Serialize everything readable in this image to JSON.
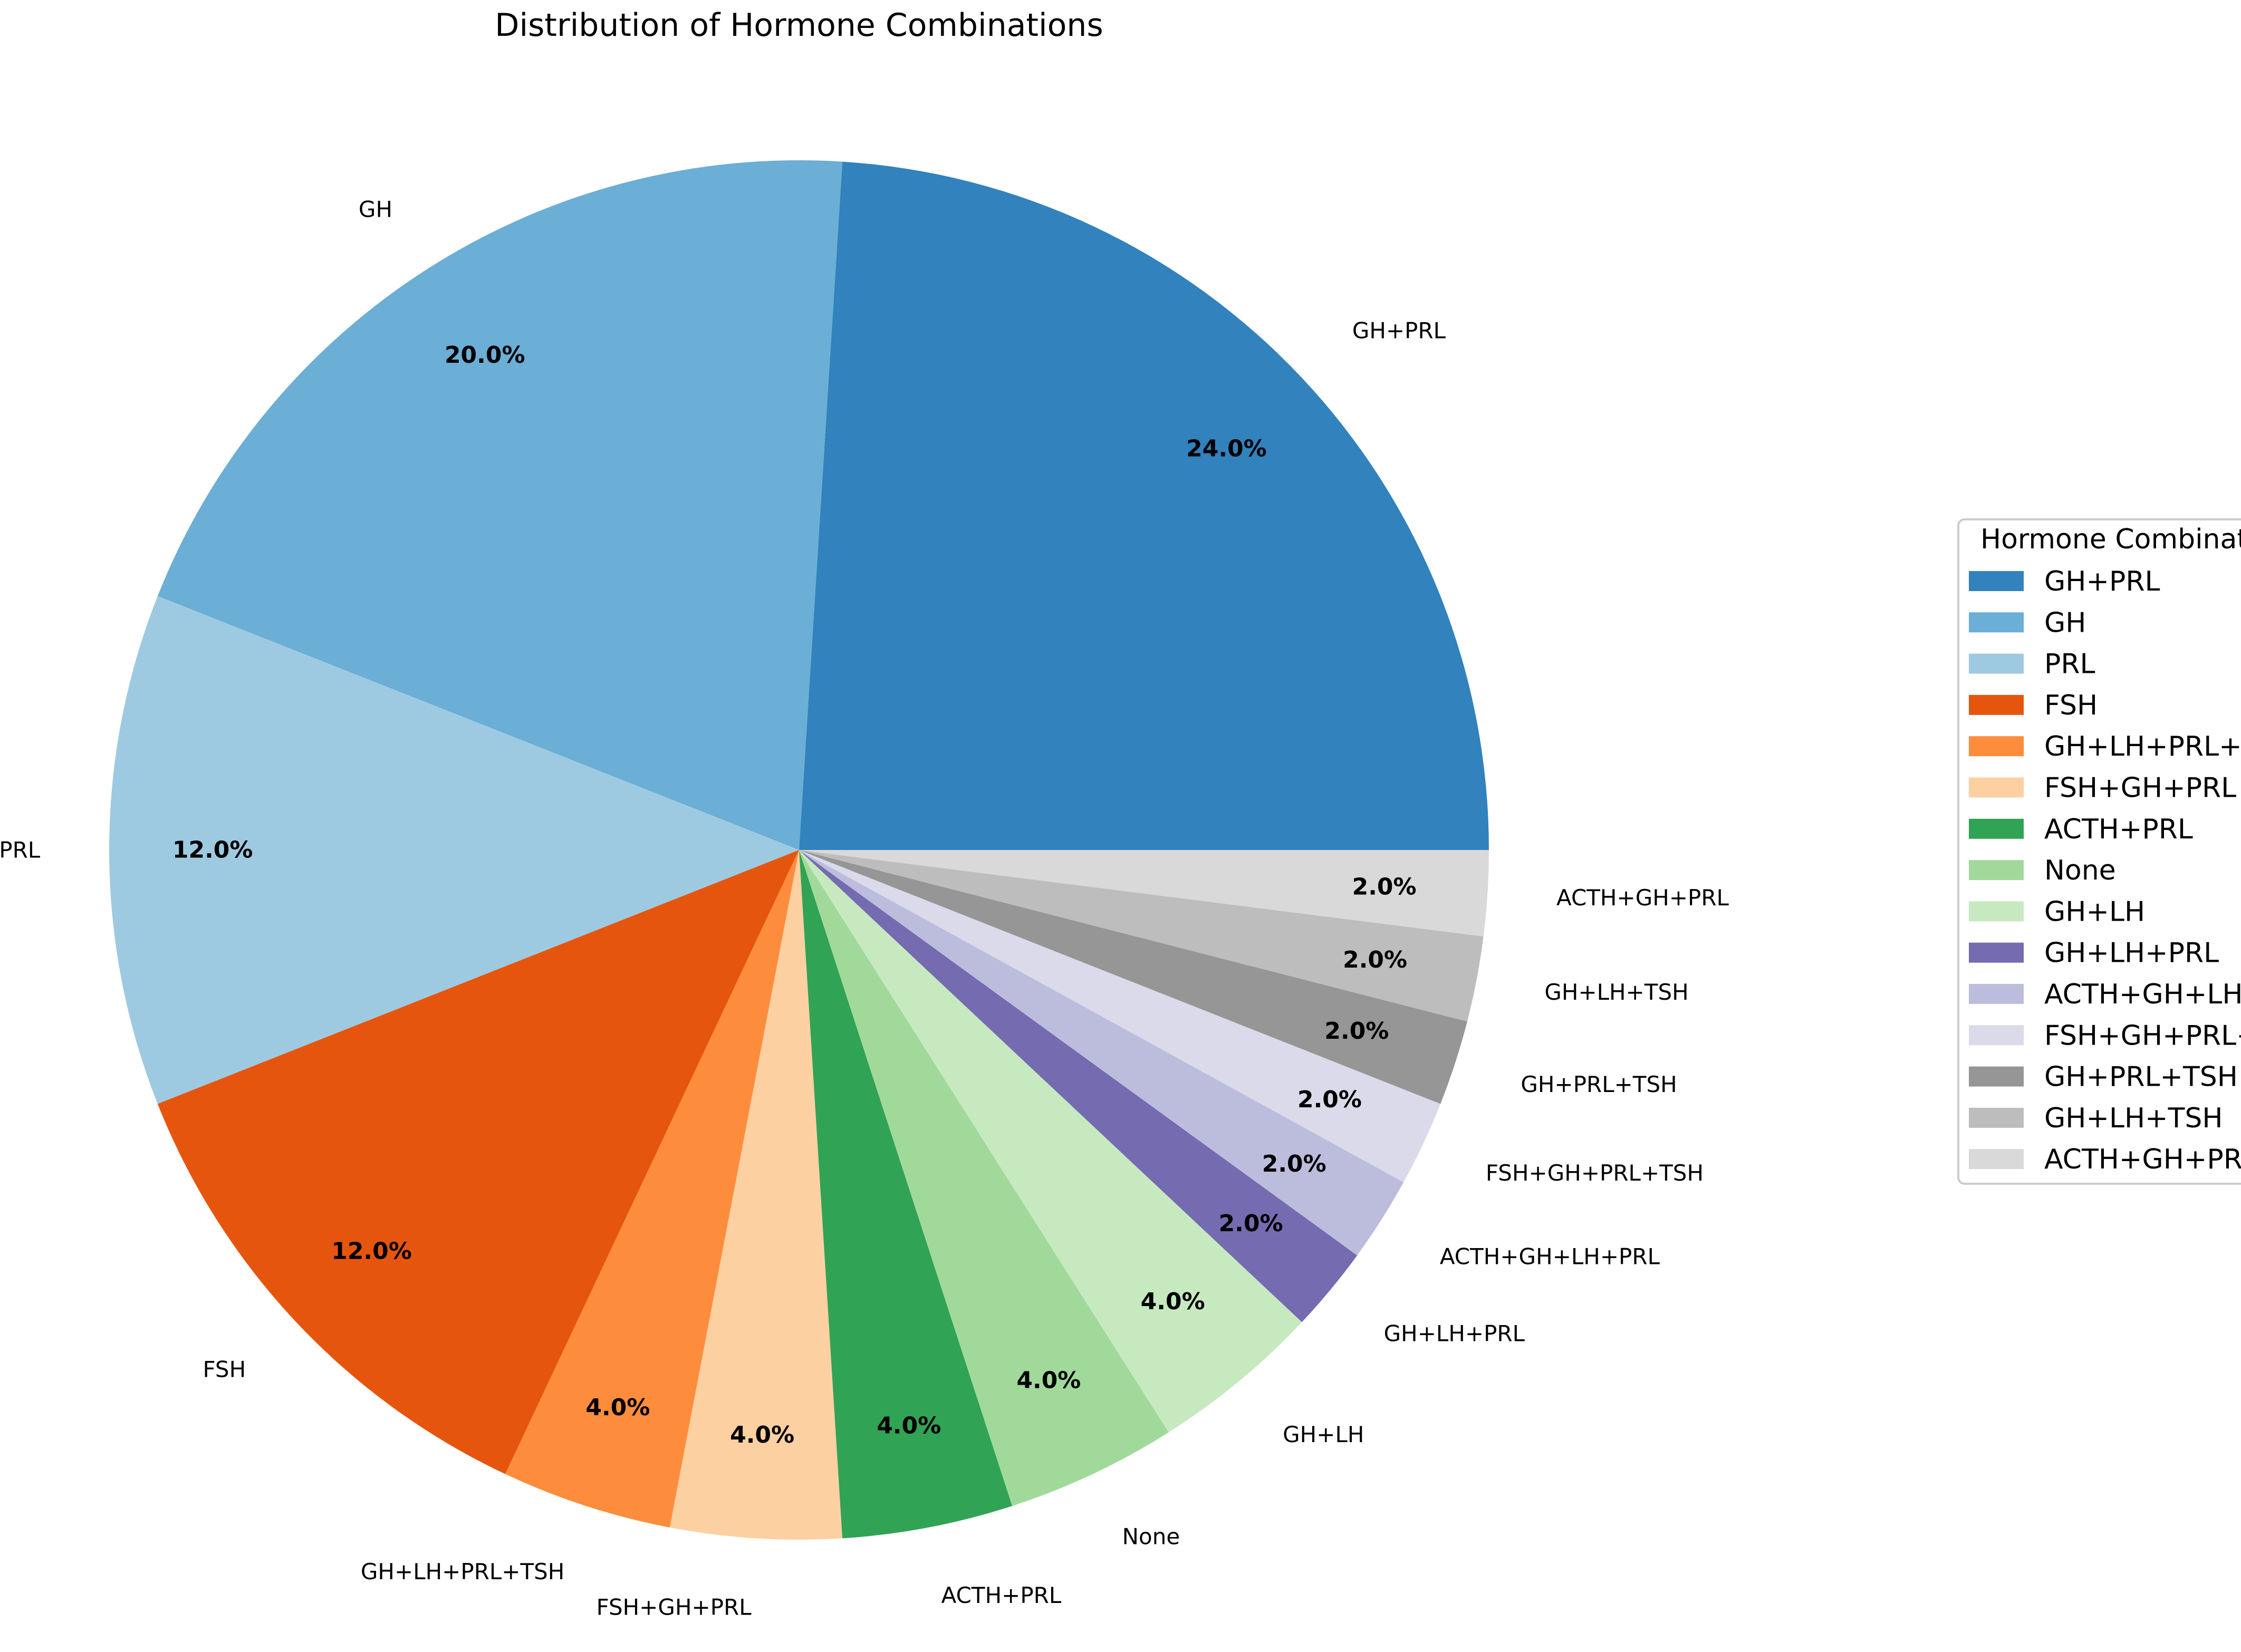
{
  "chart_data": {
    "type": "pie",
    "title": "Distribution of Hormone Combinations",
    "legend": {
      "title": "Hormone Combinations",
      "placement": "right"
    },
    "slices": [
      {
        "label": "GH+PRL",
        "value": 24.0,
        "pct_label": "24.0%",
        "color": "#3182bd"
      },
      {
        "label": "GH",
        "value": 20.0,
        "pct_label": "20.0%",
        "color": "#6baed6"
      },
      {
        "label": "PRL",
        "value": 12.0,
        "pct_label": "12.0%",
        "color": "#9ecae1"
      },
      {
        "label": "FSH",
        "value": 12.0,
        "pct_label": "12.0%",
        "color": "#e6550d"
      },
      {
        "label": "GH+LH+PRL+TSH",
        "value": 4.0,
        "pct_label": "4.0%",
        "color": "#fd8d3c"
      },
      {
        "label": "FSH+GH+PRL",
        "value": 4.0,
        "pct_label": "4.0%",
        "color": "#fdd0a2"
      },
      {
        "label": "ACTH+PRL",
        "value": 4.0,
        "pct_label": "4.0%",
        "color": "#31a354"
      },
      {
        "label": "None",
        "value": 4.0,
        "pct_label": "4.0%",
        "color": "#a1d99b"
      },
      {
        "label": "GH+LH",
        "value": 4.0,
        "pct_label": "4.0%",
        "color": "#c7e9c0"
      },
      {
        "label": "GH+LH+PRL",
        "value": 2.0,
        "pct_label": "2.0%",
        "color": "#756bb1"
      },
      {
        "label": "ACTH+GH+LH+PRL",
        "value": 2.0,
        "pct_label": "2.0%",
        "color": "#bcbddc"
      },
      {
        "label": "FSH+GH+PRL+TSH",
        "value": 2.0,
        "pct_label": "2.0%",
        "color": "#dadaeb"
      },
      {
        "label": "GH+PRL+TSH",
        "value": 2.0,
        "pct_label": "2.0%",
        "color": "#969696"
      },
      {
        "label": "GH+LH+TSH",
        "value": 2.0,
        "pct_label": "2.0%",
        "color": "#bdbdbd"
      },
      {
        "label": "ACTH+GH+PRL",
        "value": 2.0,
        "pct_label": "2.0%",
        "color": "#d9d9d9"
      }
    ]
  }
}
